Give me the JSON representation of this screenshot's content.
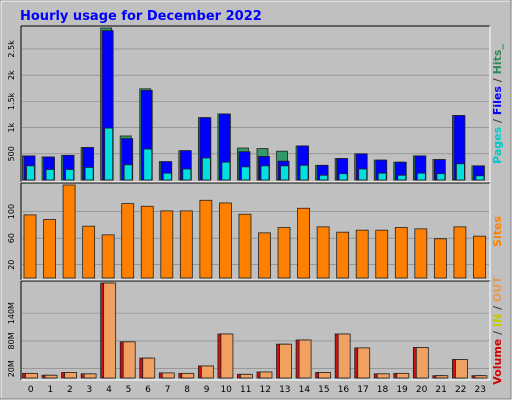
{
  "chart_data": [
    {
      "type": "bar",
      "title": "Hourly usage for December 2022",
      "panel": "pages-files-hits",
      "categories": [
        "0",
        "1",
        "2",
        "3",
        "4",
        "5",
        "6",
        "7",
        "8",
        "9",
        "10",
        "11",
        "12",
        "13",
        "14",
        "15",
        "16",
        "17",
        "18",
        "19",
        "20",
        "21",
        "22",
        "23"
      ],
      "yticks": [
        "500",
        "1k",
        "1.5k",
        "2k",
        "2.5k"
      ],
      "ylim": [
        0,
        2900
      ],
      "axis_label_parts": [
        {
          "text": "Pages",
          "color": "#00c8c8"
        },
        {
          "text": " / ",
          "color": "#404040"
        },
        {
          "text": "Files",
          "color": "#0000ff"
        },
        {
          "text": " / ",
          "color": "#404040"
        },
        {
          "text": "Hits_",
          "color": "#2e8b57"
        }
      ],
      "series": [
        {
          "key": "hits",
          "color": "#339966",
          "values": [
            460,
            440,
            470,
            620,
            2900,
            840,
            1740,
            350,
            560,
            1190,
            1260,
            610,
            600,
            550,
            650,
            280,
            410,
            500,
            380,
            340,
            460,
            390,
            1230,
            270
          ]
        },
        {
          "key": "files",
          "color": "#0000ff",
          "values": [
            460,
            440,
            470,
            620,
            2850,
            790,
            1710,
            350,
            560,
            1190,
            1260,
            540,
            450,
            360,
            650,
            280,
            410,
            500,
            380,
            340,
            460,
            390,
            1230,
            270
          ]
        },
        {
          "key": "pages",
          "color": "#00e0e0",
          "values": [
            270,
            200,
            200,
            240,
            990,
            290,
            590,
            130,
            210,
            420,
            340,
            250,
            270,
            270,
            280,
            90,
            120,
            210,
            130,
            90,
            130,
            120,
            310,
            80
          ]
        }
      ]
    },
    {
      "type": "bar",
      "panel": "sites",
      "categories": [
        "0",
        "1",
        "2",
        "3",
        "4",
        "5",
        "6",
        "7",
        "8",
        "9",
        "10",
        "11",
        "12",
        "13",
        "14",
        "15",
        "16",
        "17",
        "18",
        "19",
        "20",
        "21",
        "22",
        "23"
      ],
      "yticks": [
        "20",
        "60",
        "100"
      ],
      "ylim": [
        0,
        140
      ],
      "axis_label_parts": [
        {
          "text": "Sites",
          "color": "#ff8000"
        }
      ],
      "series": [
        {
          "key": "sites",
          "color": "#ff8000",
          "values": [
            95,
            88,
            140,
            78,
            65,
            112,
            108,
            101,
            101,
            117,
            113,
            96,
            68,
            76,
            105,
            77,
            69,
            72,
            72,
            76,
            74,
            59,
            77,
            63
          ]
        }
      ]
    },
    {
      "type": "bar",
      "panel": "volume",
      "categories": [
        "0",
        "1",
        "2",
        "3",
        "4",
        "5",
        "6",
        "7",
        "8",
        "9",
        "10",
        "11",
        "12",
        "13",
        "14",
        "15",
        "16",
        "17",
        "18",
        "19",
        "20",
        "21",
        "22",
        "23"
      ],
      "yticks": [
        "20M",
        "80M",
        "140M"
      ],
      "ylim": [
        0,
        205
      ],
      "axis_label_parts": [
        {
          "text": "Volume",
          "color": "#d00000"
        },
        {
          "text": " / ",
          "color": "#404040"
        },
        {
          "text": "IN",
          "color": "#c8c800"
        },
        {
          "text": " / ",
          "color": "#404040"
        },
        {
          "text": "OUT",
          "color": "#e89a50"
        },
        {
          "text": " ",
          "color": "#404040"
        }
      ],
      "series": [
        {
          "key": "volume",
          "color": "#d01010",
          "values": [
            10,
            6,
            12,
            9,
            205,
            78,
            43,
            11,
            10,
            26,
            95,
            8,
            13,
            73,
            82,
            12,
            95,
            65,
            9,
            10,
            66,
            5,
            40,
            5
          ]
        },
        {
          "key": "out",
          "color": "#f0a060",
          "values": [
            10,
            6,
            12,
            9,
            205,
            78,
            43,
            11,
            10,
            26,
            95,
            8,
            13,
            73,
            82,
            12,
            95,
            65,
            9,
            10,
            66,
            5,
            40,
            5
          ]
        }
      ]
    }
  ]
}
